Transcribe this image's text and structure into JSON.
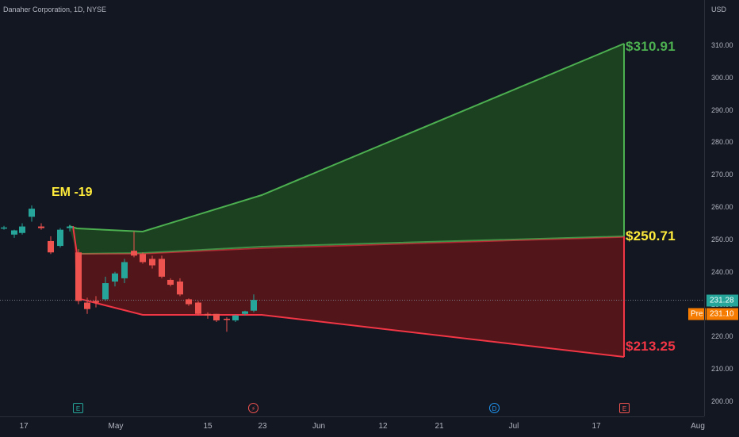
{
  "header": {
    "symbol_title": "Danaher Corporation, 1D, NYSE"
  },
  "price_axis": {
    "unit": "USD",
    "ticks": [
      "310.00",
      "300.00",
      "290.00",
      "280.00",
      "270.00",
      "260.00",
      "250.00",
      "240.00",
      "230.00",
      "220.00",
      "210.00",
      "200.00"
    ],
    "last_price": "231.28",
    "premarket_badge": "Pre",
    "premarket_price": "231.10"
  },
  "time_axis": {
    "ticks": [
      "17",
      "May",
      "15",
      "23",
      "Jun",
      "12",
      "21",
      "Jul",
      "17",
      "Aug"
    ]
  },
  "annotations": {
    "em_label": "EM -19",
    "upper_level": "$310.91",
    "mid_level": "$250.71",
    "lower_level": "$213.25"
  },
  "event_markers": [
    {
      "type": "earnings",
      "glyph": "E"
    },
    {
      "type": "split",
      "glyph": "⚡"
    },
    {
      "type": "dividend",
      "glyph": "D"
    },
    {
      "type": "earnings-upcoming",
      "glyph": "E"
    }
  ],
  "colors": {
    "background": "#131722",
    "up_candle": "#26a69a",
    "down_candle": "#ef5350",
    "green_zone_fill": "#1e4620",
    "green_zone_line": "#4caf50",
    "red_zone_fill": "#5a161a",
    "red_zone_line": "#f23645",
    "mid_level_label": "#ffeb3b",
    "upper_level_label": "#4caf50",
    "lower_level_label": "#f23645"
  },
  "chart_data": {
    "type": "candlestick",
    "title": "Danaher Corporation, 1D, NYSE",
    "ylabel": "USD",
    "ylim": [
      197,
      319
    ],
    "xlabel": "",
    "candles": [
      {
        "o": 253.5,
        "h": 254.2,
        "l": 253.0,
        "c": 253.7
      },
      {
        "o": 251.5,
        "h": 253.0,
        "l": 250.5,
        "c": 252.8
      },
      {
        "o": 252.0,
        "h": 255.0,
        "l": 251.5,
        "c": 254.0
      },
      {
        "o": 257.0,
        "h": 260.5,
        "l": 255.5,
        "c": 259.5
      },
      {
        "o": 254.0,
        "h": 255.0,
        "l": 253.0,
        "c": 253.5
      },
      {
        "o": 249.5,
        "h": 251.0,
        "l": 245.5,
        "c": 246.0
      },
      {
        "o": 248.0,
        "h": 253.5,
        "l": 247.5,
        "c": 253.0
      },
      {
        "o": 253.5,
        "h": 254.5,
        "l": 252.5,
        "c": 254.0
      },
      {
        "o": 246.0,
        "h": 247.0,
        "l": 230.0,
        "c": 231.0
      },
      {
        "o": 230.5,
        "h": 232.0,
        "l": 227.0,
        "c": 228.5
      },
      {
        "o": 231.0,
        "h": 232.5,
        "l": 229.0,
        "c": 230.5
      },
      {
        "o": 231.5,
        "h": 238.5,
        "l": 231.0,
        "c": 236.5
      },
      {
        "o": 237.0,
        "h": 240.0,
        "l": 235.5,
        "c": 239.5
      },
      {
        "o": 238.0,
        "h": 244.0,
        "l": 236.5,
        "c": 243.0
      },
      {
        "o": 246.5,
        "h": 252.5,
        "l": 244.5,
        "c": 245.0
      },
      {
        "o": 245.5,
        "h": 246.0,
        "l": 242.5,
        "c": 243.0
      },
      {
        "o": 244.0,
        "h": 245.0,
        "l": 241.0,
        "c": 242.0
      },
      {
        "o": 244.0,
        "h": 245.0,
        "l": 238.0,
        "c": 238.5
      },
      {
        "o": 237.5,
        "h": 238.0,
        "l": 235.5,
        "c": 236.0
      },
      {
        "o": 237.0,
        "h": 238.0,
        "l": 232.5,
        "c": 233.0
      },
      {
        "o": 231.5,
        "h": 231.8,
        "l": 229.5,
        "c": 230.0
      },
      {
        "o": 230.5,
        "h": 231.0,
        "l": 226.5,
        "c": 227.0
      },
      {
        "o": 227.0,
        "h": 227.5,
        "l": 225.5,
        "c": 226.5
      },
      {
        "o": 227.0,
        "h": 227.0,
        "l": 224.5,
        "c": 225.0
      },
      {
        "o": 225.5,
        "h": 226.0,
        "l": 221.5,
        "c": 225.2
      },
      {
        "o": 225.0,
        "h": 226.8,
        "l": 224.5,
        "c": 226.5
      },
      {
        "o": 227.0,
        "h": 228.0,
        "l": 226.5,
        "c": 227.8
      },
      {
        "o": 228.0,
        "h": 233.0,
        "l": 227.5,
        "c": 231.3
      }
    ],
    "expected_move_zone": {
      "upper_target": 310.91,
      "mid_target": 250.71,
      "lower_target": 213.25
    },
    "reference_lines": {
      "last_price": 231.28
    }
  }
}
